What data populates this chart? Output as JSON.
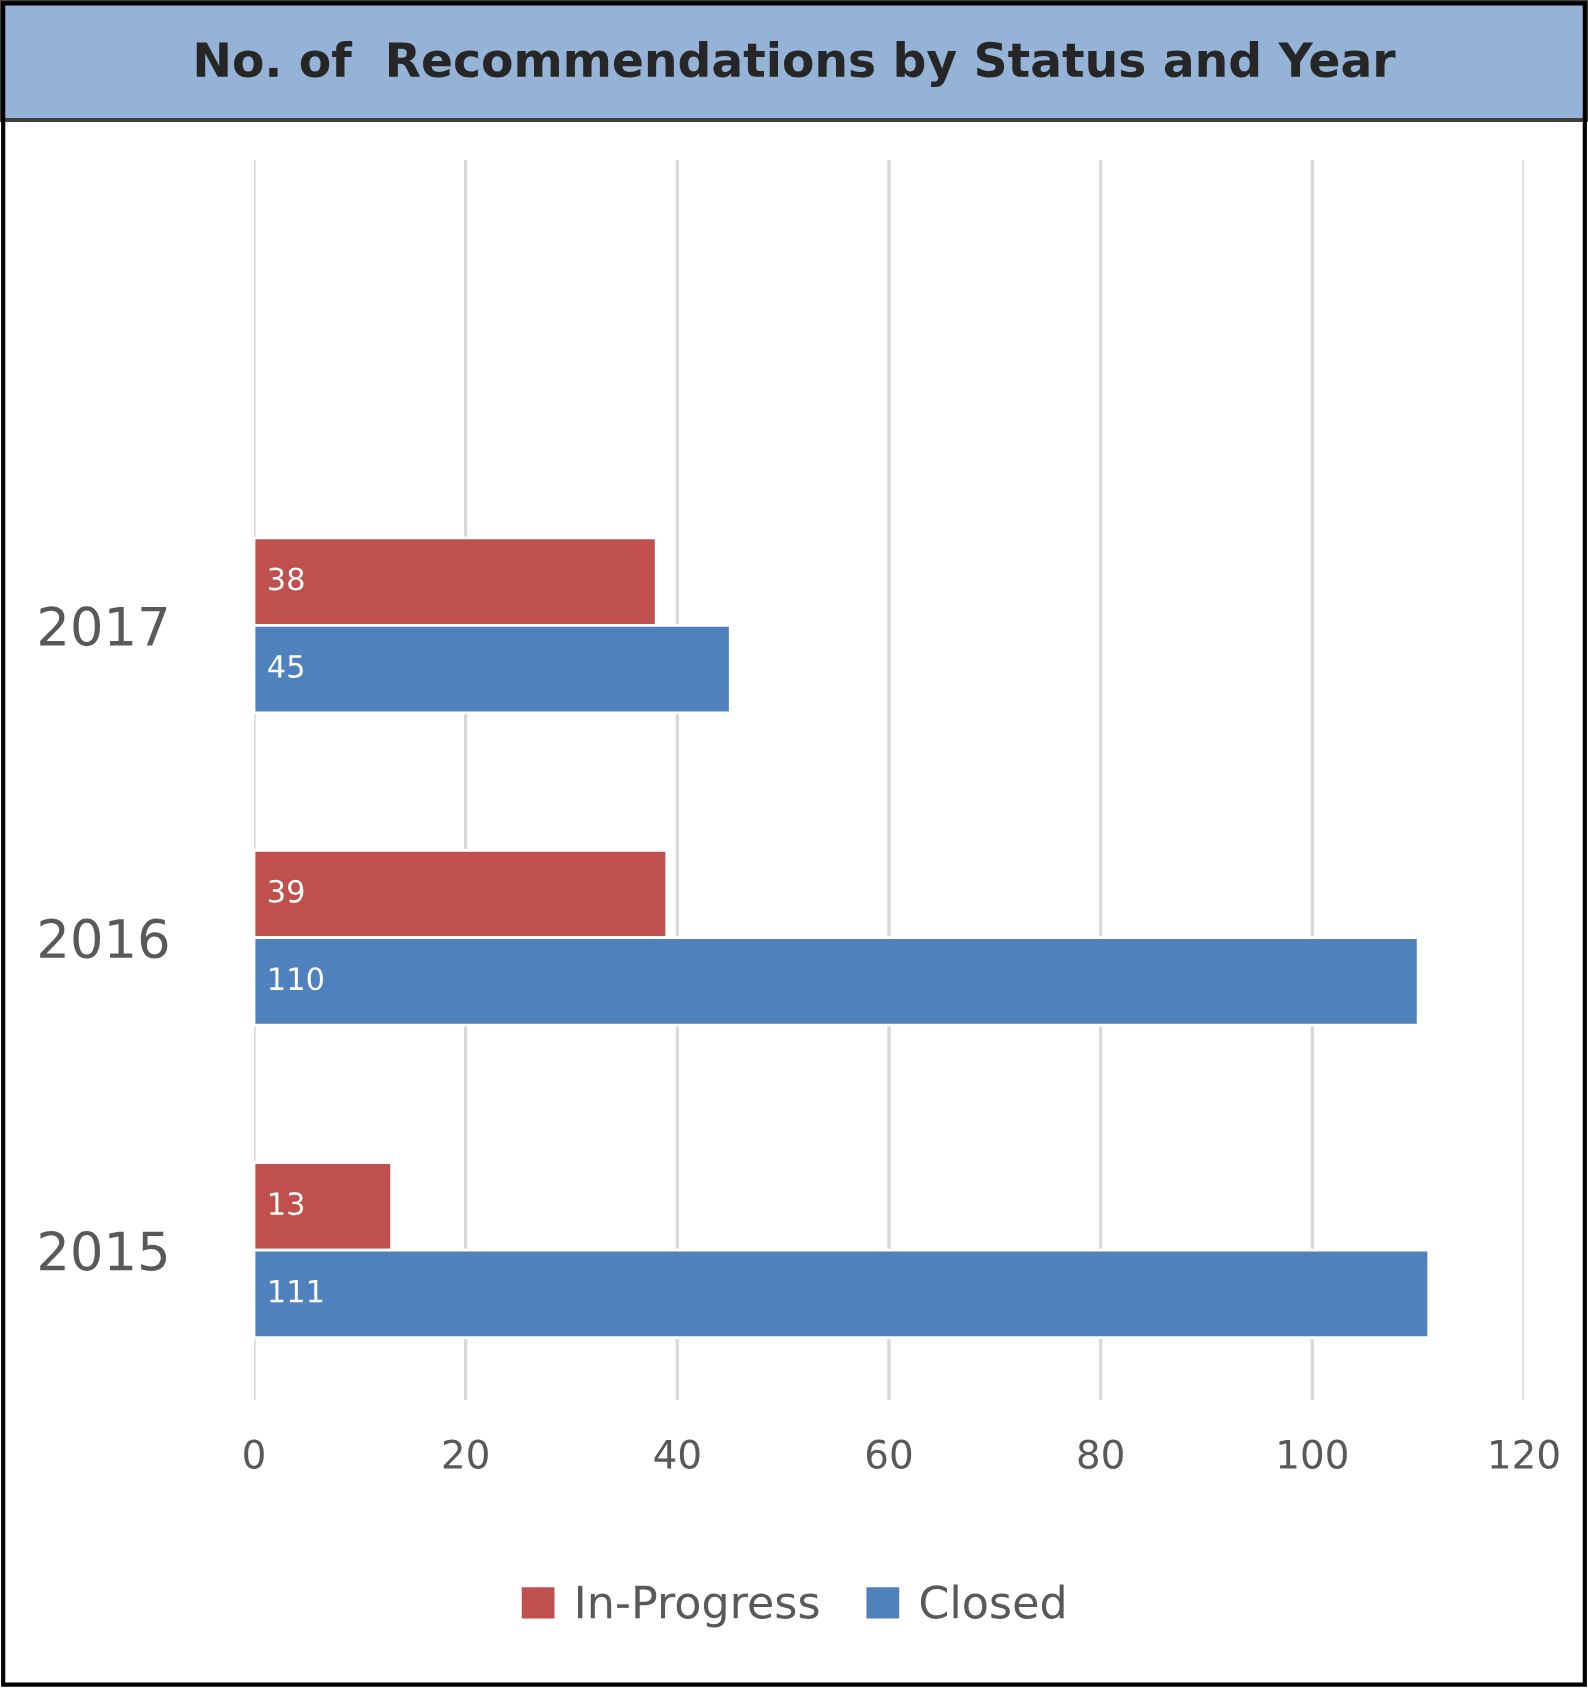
{
  "chart_data": {
    "type": "bar",
    "orientation": "horizontal",
    "title": "No. of  Recommendations by Status and Year",
    "categories": [
      "2017",
      "2016",
      "2015"
    ],
    "series": [
      {
        "name": "In-Progress",
        "color": "#c0504d",
        "values": [
          38,
          39,
          13
        ]
      },
      {
        "name": "Closed",
        "color": "#4f81bd",
        "values": [
          45,
          110,
          111
        ]
      }
    ],
    "xlim": [
      0,
      120
    ],
    "xticks": [
      0,
      20,
      40,
      60,
      80,
      100,
      120
    ],
    "grid": "x",
    "legend": "bottom",
    "data_labels": true
  }
}
